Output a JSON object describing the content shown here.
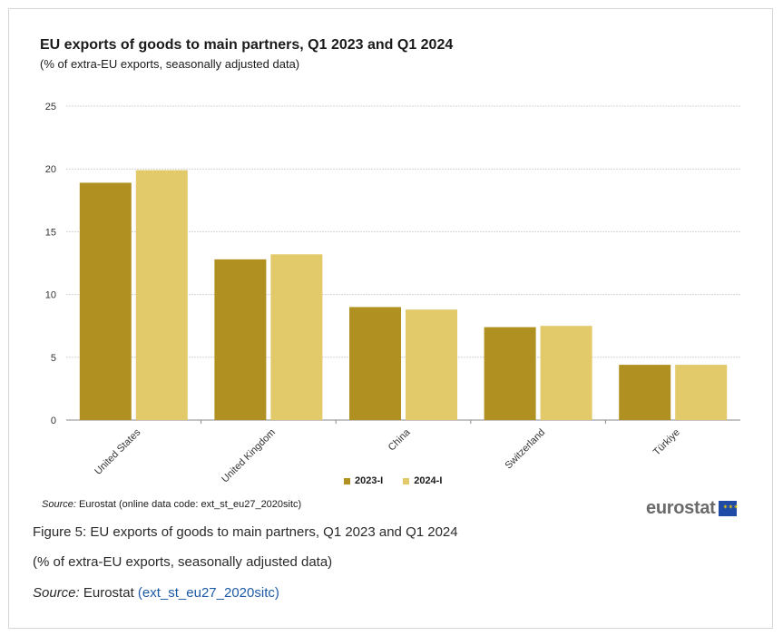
{
  "chart_data": {
    "type": "bar",
    "title": "EU exports of goods to main partners, Q1 2023 and Q1 2024",
    "subtitle": "(% of extra-EU exports, seasonally adjusted data)",
    "categories": [
      "United States",
      "United Kingdom",
      "China",
      "Switzerland",
      "Türkiye"
    ],
    "series": [
      {
        "name": "2023-I",
        "values": [
          18.9,
          12.8,
          9.0,
          7.4,
          4.4
        ],
        "color": "#b09020"
      },
      {
        "name": "2024-I",
        "values": [
          19.9,
          13.2,
          8.8,
          7.5,
          4.4
        ],
        "color": "#e2c96a"
      }
    ],
    "ylim": [
      0,
      25
    ],
    "yticks": [
      0,
      5,
      10,
      15,
      20,
      25
    ],
    "grid": true,
    "legend_position": "bottom-center"
  },
  "source": {
    "label": "Source:",
    "text": "Eurostat (online data code: ext_st_eu27_2020sitc)"
  },
  "logo": {
    "text": "eurostat"
  },
  "caption": {
    "figure": "Figure 5: EU exports of goods to main partners, Q1 2023 and Q1 2024",
    "subtitle": "(% of extra-EU exports, seasonally adjusted data)",
    "source_label": "Source:",
    "source_text": "Eurostat",
    "source_link": "(ext_st_eu27_2020sitc)"
  }
}
